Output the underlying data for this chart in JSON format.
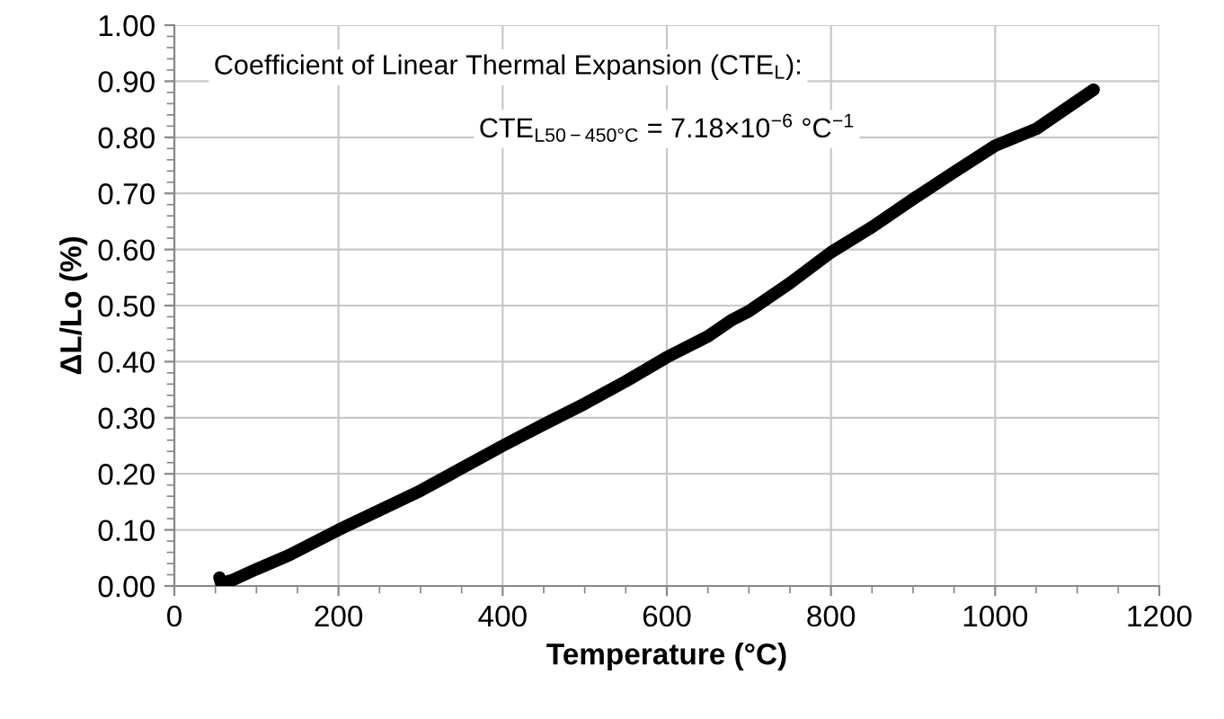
{
  "chart_data": {
    "type": "line",
    "xlabel": "Temperature (°C)",
    "ylabel": "ΔL/Lo (%)",
    "x": [
      55,
      57,
      70,
      100,
      140,
      200,
      250,
      300,
      350,
      400,
      450,
      500,
      550,
      600,
      650,
      680,
      700,
      750,
      800,
      850,
      900,
      950,
      1000,
      1050,
      1080,
      1120
    ],
    "series": [
      {
        "color": "#000000",
        "values": [
          0.015,
          0.005,
          0.01,
          0.03,
          0.055,
          0.1,
          0.135,
          0.17,
          0.21,
          0.25,
          0.288,
          0.325,
          0.365,
          0.408,
          0.445,
          0.475,
          0.49,
          0.54,
          0.595,
          0.64,
          0.69,
          0.738,
          0.785,
          0.815,
          0.845,
          0.885
        ]
      }
    ],
    "xlim": [
      0,
      1200
    ],
    "xticks": [
      0,
      200,
      400,
      600,
      800,
      1000,
      1200
    ],
    "ylim": [
      0,
      1
    ],
    "yticks": [
      {
        "value": 0,
        "label": "0.00"
      },
      {
        "value": 0.1,
        "label": "0.10"
      },
      {
        "value": 0.2,
        "label": "0.20"
      },
      {
        "value": 0.3,
        "label": "0.30"
      },
      {
        "value": 0.4,
        "label": "0.40"
      },
      {
        "value": 0.5,
        "label": "0.50"
      },
      {
        "value": 0.6,
        "label": "0.60"
      },
      {
        "value": 0.7,
        "label": "0.70"
      },
      {
        "value": 0.8,
        "label": "0.80"
      },
      {
        "value": 0.9,
        "label": "0.90"
      },
      {
        "value": 1,
        "label": "1.00"
      }
    ],
    "grid": true,
    "annotations": [
      "Coefficient of Linear Thermal Expansion (CTE$_{L}$):",
      "CTE$_{L50−450°C}$ = 7.18×10$^{−6}$ °C$^{−1}$"
    ]
  }
}
